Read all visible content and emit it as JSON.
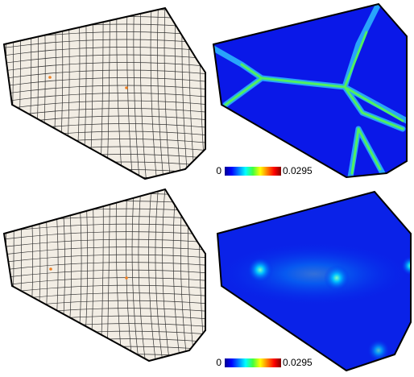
{
  "panels": [
    {
      "colorbar": {
        "min": 0,
        "max": 0.0295
      }
    },
    {
      "colorbar": {
        "min": 0,
        "max": 0.0295
      }
    }
  ]
}
